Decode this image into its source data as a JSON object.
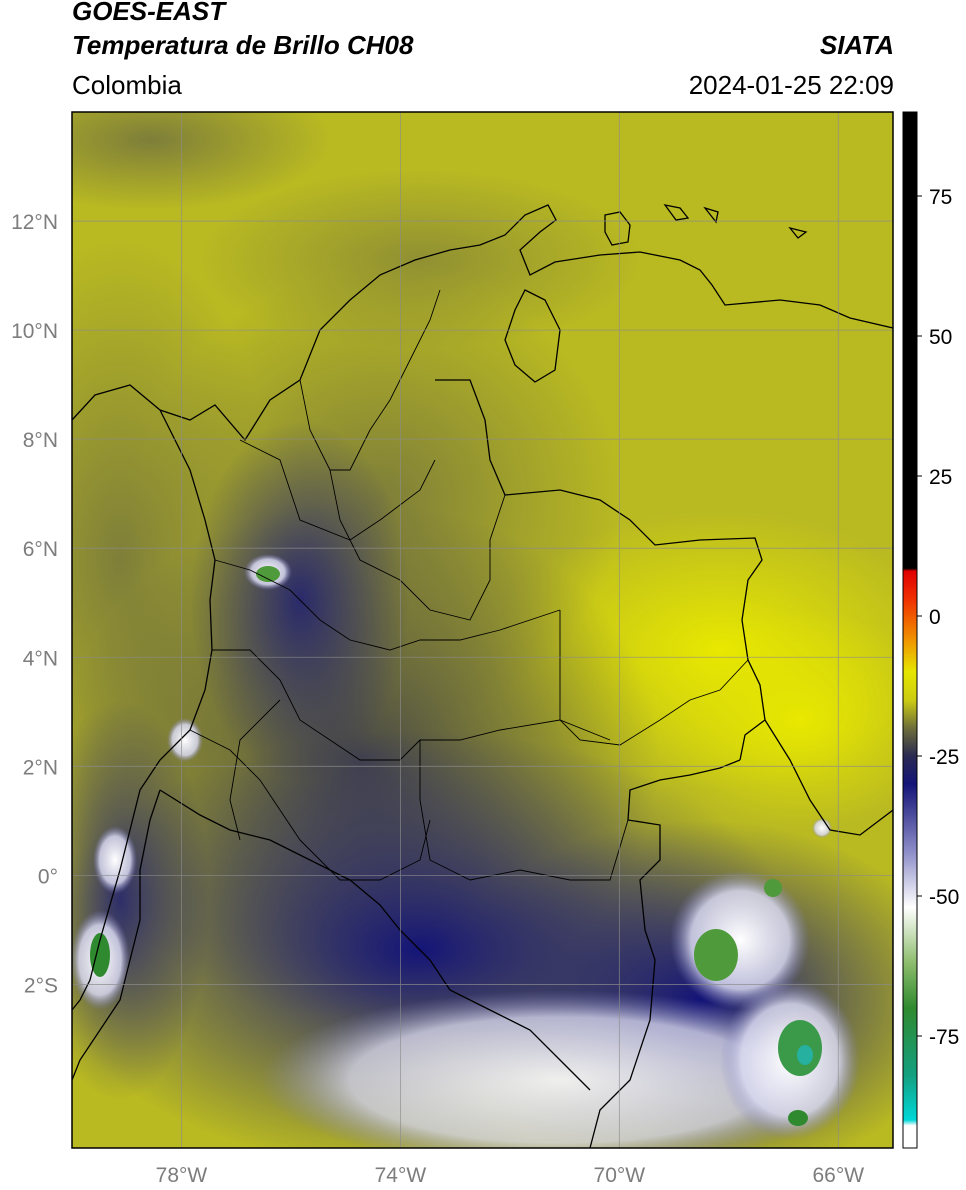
{
  "header": {
    "title_line1": "GOES-EAST",
    "title_line2": "Temperatura de Brillo CH08",
    "brand": "SIATA",
    "region": "Colombia",
    "timestamp": "2024-01-25 22:09"
  },
  "map": {
    "lon_range": [
      -80,
      -65
    ],
    "lat_range": [
      -5,
      14
    ],
    "lon_ticks": [
      {
        "value": -78,
        "label": "78°W"
      },
      {
        "value": -74,
        "label": "74°W"
      },
      {
        "value": -70,
        "label": "70°W"
      },
      {
        "value": -66,
        "label": "66°W"
      }
    ],
    "lat_ticks": [
      {
        "value": 12,
        "label": "12°N"
      },
      {
        "value": 10,
        "label": "10°N"
      },
      {
        "value": 8,
        "label": "8°N"
      },
      {
        "value": 6,
        "label": "6°N"
      },
      {
        "value": 4,
        "label": "4°N"
      },
      {
        "value": 2,
        "label": "2°N"
      },
      {
        "value": 0,
        "label": "0°"
      },
      {
        "value": -2,
        "label": "2°S"
      }
    ],
    "grid": true
  },
  "colorbar": {
    "range": [
      -95,
      90
    ],
    "ticks": [
      {
        "value": 75,
        "label": "75"
      },
      {
        "value": 50,
        "label": "50"
      },
      {
        "value": 25,
        "label": "25"
      },
      {
        "value": 0,
        "label": "0"
      },
      {
        "value": -25,
        "label": "-25"
      },
      {
        "value": -50,
        "label": "-50"
      },
      {
        "value": -75,
        "label": "-75"
      }
    ],
    "stops": [
      {
        "value": -95,
        "color": "#ffffff"
      },
      {
        "value": -91,
        "color": "#ffffff"
      },
      {
        "value": -90,
        "color": "#00d8d8"
      },
      {
        "value": -82,
        "color": "#13a080"
      },
      {
        "value": -70,
        "color": "#2f8a2f"
      },
      {
        "value": -62,
        "color": "#8cbc6c"
      },
      {
        "value": -52,
        "color": "#ffffff"
      },
      {
        "value": -42,
        "color": "#8c8cc8"
      },
      {
        "value": -30,
        "color": "#141478"
      },
      {
        "value": -25,
        "color": "#2a2a52"
      },
      {
        "value": -20,
        "color": "#6e6e3a"
      },
      {
        "value": -15,
        "color": "#cccc12"
      },
      {
        "value": -10,
        "color": "#e6e600"
      },
      {
        "value": -4,
        "color": "#f09000"
      },
      {
        "value": 3,
        "color": "#f03000"
      },
      {
        "value": 8,
        "color": "#e00000"
      },
      {
        "value": 8.5,
        "color": "#000000"
      },
      {
        "value": 90,
        "color": "#000000"
      }
    ]
  }
}
